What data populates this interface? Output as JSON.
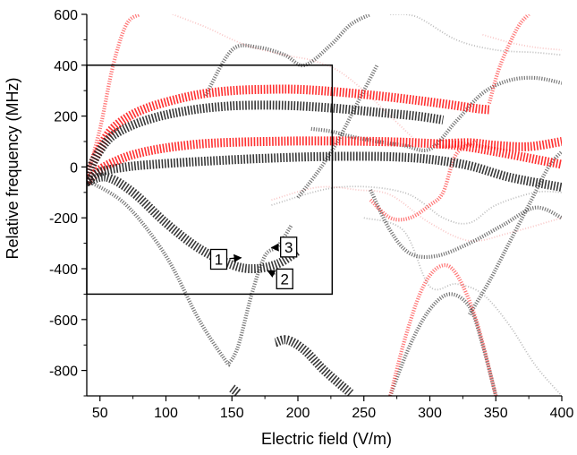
{
  "chart_data": {
    "type": "line",
    "title": "",
    "xlabel": "Electric field (V/m)",
    "ylabel": "Relative frequency (MHz)",
    "xlim": [
      40,
      400
    ],
    "ylim": [
      -900,
      600
    ],
    "x_ticks": [
      50,
      100,
      150,
      200,
      250,
      300,
      350,
      400
    ],
    "x_tick_labels": [
      "50",
      "100",
      "150",
      "200",
      "250",
      "300",
      "350",
      "400"
    ],
    "y_ticks": [
      600,
      400,
      200,
      0,
      -200,
      -400,
      -600,
      -800
    ],
    "y_tick_labels": [
      "600",
      "400",
      "200",
      "0",
      "-200",
      "-400",
      "-600",
      "-800"
    ],
    "grid": false,
    "legend": "none",
    "colors": {
      "red": "#ff1a1a",
      "black": "#222222",
      "red_faint": "#f07070",
      "black_faint": "#555555"
    },
    "highlight_box": {
      "x": [
        40,
        226
      ],
      "y": [
        -500,
        400
      ]
    },
    "series": [
      {
        "color": "red",
        "weight": "heavy",
        "x": [
          40,
          45,
          55,
          65,
          80,
          100,
          125,
          150,
          175,
          200,
          230,
          260,
          290,
          315,
          335,
          345
        ],
        "y": [
          -60,
          20,
          120,
          175,
          220,
          255,
          285,
          300,
          305,
          305,
          295,
          280,
          262,
          245,
          230,
          225
        ]
      },
      {
        "color": "black",
        "weight": "heavy",
        "x": [
          40,
          45,
          55,
          65,
          80,
          100,
          125,
          150,
          175,
          200,
          230,
          260,
          290,
          310
        ],
        "y": [
          -60,
          20,
          100,
          140,
          175,
          205,
          228,
          240,
          243,
          240,
          230,
          215,
          200,
          185
        ]
      },
      {
        "color": "red",
        "weight": "heavy",
        "x": [
          40,
          50,
          65,
          80,
          100,
          125,
          150,
          175,
          200,
          230,
          260,
          290,
          320,
          350,
          380,
          400
        ],
        "y": [
          -60,
          -10,
          30,
          55,
          75,
          90,
          97,
          100,
          102,
          102,
          100,
          95,
          85,
          60,
          30,
          10
        ]
      },
      {
        "color": "red",
        "weight": "heavy",
        "x": [
          305,
          330,
          350,
          375,
          400
        ],
        "y": [
          90,
          95,
          85,
          80,
          100
        ]
      },
      {
        "color": "black",
        "weight": "heavy",
        "x": [
          40,
          50,
          70,
          90,
          120,
          150,
          180,
          210,
          240,
          270,
          300,
          330,
          360,
          400
        ],
        "y": [
          -60,
          -20,
          0,
          10,
          20,
          28,
          35,
          40,
          42,
          40,
          30,
          5,
          -40,
          -80
        ]
      },
      {
        "color": "black",
        "weight": "heavy",
        "x": [
          40,
          55,
          75,
          100,
          125,
          150,
          167,
          185,
          200
        ],
        "y": [
          -60,
          -40,
          -100,
          -220,
          -320,
          -385,
          -400,
          -380,
          -330
        ]
      },
      {
        "color": "black",
        "weight": "heavy",
        "x": [
          183,
          192,
          205,
          220,
          240
        ],
        "y": [
          -690,
          -680,
          -720,
          -800,
          -890
        ]
      },
      {
        "color": "black",
        "weight": "heavy",
        "x": [
          150,
          155
        ],
        "y": [
          -870,
          -890
        ]
      },
      {
        "color": "black",
        "weight": "medium",
        "x": [
          43,
          70,
          100,
          125,
          145,
          148,
          155,
          165,
          175,
          185,
          195
        ],
        "y": [
          -60,
          -150,
          -350,
          -600,
          -760,
          -770,
          -700,
          -500,
          -350,
          -310,
          -230
        ]
      },
      {
        "color": "black",
        "weight": "medium",
        "x": [
          200,
          215,
          230,
          245,
          260
        ],
        "y": [
          -120,
          -20,
          100,
          250,
          400
        ]
      },
      {
        "color": "black",
        "weight": "medium",
        "x": [
          130,
          150,
          170,
          190,
          205,
          225,
          240,
          255
        ],
        "y": [
          280,
          460,
          470,
          440,
          400,
          480,
          560,
          600
        ]
      },
      {
        "color": "black",
        "weight": "medium",
        "x": [
          210,
          225,
          240,
          260,
          280,
          300,
          320,
          340,
          360,
          380,
          400
        ],
        "y": [
          150,
          140,
          120,
          100,
          85,
          70,
          180,
          290,
          340,
          350,
          330
        ]
      },
      {
        "color": "black",
        "weight": "medium",
        "x": [
          255,
          270,
          285,
          305,
          330,
          355,
          380,
          400
        ],
        "y": [
          -90,
          -250,
          -340,
          -350,
          -300,
          -230,
          -160,
          -200
        ]
      },
      {
        "color": "black",
        "weight": "medium",
        "x": [
          330,
          345,
          360,
          375,
          390,
          400
        ],
        "y": [
          -580,
          -450,
          -300,
          -150,
          0,
          60
        ]
      },
      {
        "color": "black",
        "weight": "medium",
        "x": [
          270,
          285,
          300,
          315,
          330,
          340,
          350
        ],
        "y": [
          -900,
          -700,
          -560,
          -500,
          -550,
          -700,
          -900
        ]
      },
      {
        "color": "black",
        "weight": "faint",
        "x": [
          180,
          230,
          280,
          310,
          330,
          350,
          380,
          400
        ],
        "y": [
          -150,
          -80,
          -100,
          -200,
          -220,
          -150,
          -100,
          -100
        ]
      },
      {
        "color": "black",
        "weight": "faint",
        "x": [
          250,
          280,
          300,
          320,
          340,
          360,
          380,
          400
        ],
        "y": [
          -200,
          -250,
          -470,
          -460,
          -500,
          -620,
          -780,
          -900
        ]
      },
      {
        "color": "black",
        "weight": "faint",
        "x": [
          270,
          290,
          320,
          350,
          380,
          400
        ],
        "y": [
          600,
          590,
          500,
          460,
          450,
          440
        ]
      },
      {
        "color": "red",
        "weight": "medium",
        "x": [
          40,
          50,
          60,
          70,
          80
        ],
        "y": [
          -40,
          150,
          400,
          560,
          600
        ]
      },
      {
        "color": "red",
        "weight": "medium",
        "x": [
          345,
          352,
          360,
          368,
          375
        ],
        "y": [
          250,
          380,
          480,
          560,
          600
        ]
      },
      {
        "color": "red",
        "weight": "medium",
        "x": [
          270,
          282,
          295,
          308,
          320,
          335,
          350
        ],
        "y": [
          -900,
          -660,
          -470,
          -390,
          -420,
          -600,
          -900
        ]
      },
      {
        "color": "red",
        "weight": "medium",
        "x": [
          255,
          270,
          285,
          300,
          310,
          320,
          335
        ],
        "y": [
          -130,
          -200,
          -200,
          -150,
          -100,
          50,
          100
        ]
      },
      {
        "color": "red",
        "weight": "faint",
        "x": [
          105,
          130,
          160,
          190,
          210,
          230,
          250,
          270,
          290
        ],
        "y": [
          600,
          550,
          480,
          440,
          420,
          380,
          300,
          200,
          100
        ]
      },
      {
        "color": "red",
        "weight": "faint",
        "x": [
          180,
          215,
          245,
          270,
          300,
          330,
          360,
          400
        ],
        "y": [
          -130,
          -80,
          -90,
          -110,
          -220,
          -290,
          -260,
          -200
        ]
      },
      {
        "color": "red",
        "weight": "faint",
        "x": [
          340,
          360,
          380,
          400
        ],
        "y": [
          520,
          490,
          470,
          460
        ]
      }
    ]
  },
  "annotations": [
    {
      "label": "1",
      "x": 140,
      "y": -363,
      "tip_x": 157,
      "tip_y": -357
    },
    {
      "label": "2",
      "x": 190,
      "y": -440,
      "tip_x": 177,
      "tip_y": -408
    },
    {
      "label": "3",
      "x": 193,
      "y": -315,
      "tip_x": 180,
      "tip_y": -317
    }
  ]
}
